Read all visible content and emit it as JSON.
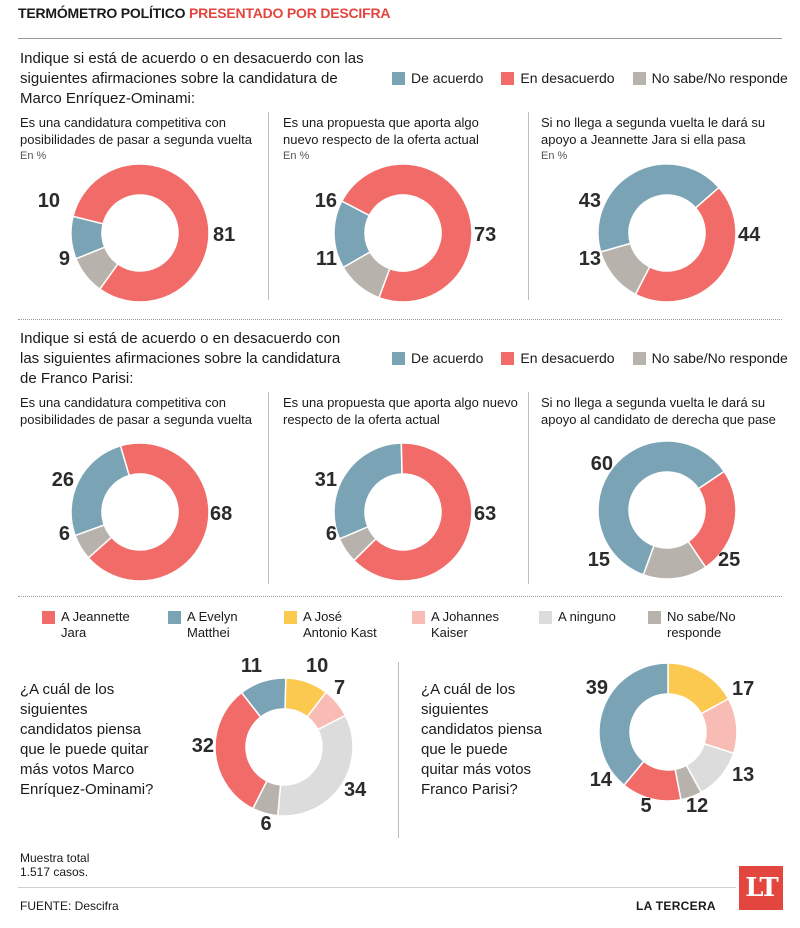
{
  "header": {
    "title": "TERMÓMETRO POLÍTICO",
    "subtitle": "PRESENTADO POR DESCIFRA"
  },
  "legend_agree": [
    {
      "label": "De acuerdo",
      "color": "#7aa4b5"
    },
    {
      "label": "En desacuerdo",
      "color": "#f16c68"
    },
    {
      "label": "No sabe/No responde",
      "color": "#b8b2ad"
    }
  ],
  "section1": {
    "question": [
      "Indique si está de acuerdo o en desacuerdo con las",
      "siguientes afirmaciones sobre la candidatura de",
      "Marco Enríquez-Ominami:"
    ],
    "charts": [
      {
        "lines": [
          "Es una candidatura competitiva con",
          "posibilidades de pasar a segunda vuelta"
        ],
        "unit": "En %"
      },
      {
        "lines": [
          "Es una propuesta que aporta algo",
          "nuevo respecto de la oferta actual"
        ],
        "unit": "En %"
      },
      {
        "lines": [
          "Si no llega a segunda vuelta le dará su",
          "apoyo a Jeannette Jara si ella pasa"
        ],
        "unit": "En %"
      }
    ]
  },
  "section2": {
    "question": [
      "Indique si está de acuerdo o en desacuerdo con",
      "las siguientes afirmaciones sobre la candidatura",
      "de Franco Parisi:"
    ],
    "charts": [
      {
        "lines": [
          "Es una candidatura competitiva con",
          "posibilidades de pasar a segunda vuelta"
        ]
      },
      {
        "lines": [
          "Es una propuesta que aporta algo nuevo",
          "respecto de la oferta actual"
        ]
      },
      {
        "lines": [
          "Si no llega a segunda vuelta le dará su",
          "apoyo al candidato de derecha que pase"
        ]
      }
    ]
  },
  "legend_candidates": [
    {
      "lines": [
        "A Jeannette",
        "Jara"
      ],
      "color": "#f16c68"
    },
    {
      "lines": [
        "A Evelyn",
        "Matthei"
      ],
      "color": "#7aa4b5"
    },
    {
      "lines": [
        "A José",
        "Antonio Kast"
      ],
      "color": "#fbc850"
    },
    {
      "lines": [
        "A Johannes",
        "Kaiser"
      ],
      "color": "#f8bcb5"
    },
    {
      "lines": [
        "A ninguno",
        ""
      ],
      "color": "#dcdcdc"
    },
    {
      "lines": [
        "No sabe/No",
        "responde"
      ],
      "color": "#b8b2ad"
    }
  ],
  "section3": {
    "q_meo": [
      "¿A cuál de los",
      "siguientes",
      "candidatos piensa",
      "que le puede quitar",
      "más votos Marco",
      "Enríquez-Ominami?"
    ],
    "q_parisi": [
      "¿A cuál de los",
      "siguientes",
      "candidatos piensa",
      "que le puede",
      "quitar más votos",
      "Franco Parisi?"
    ]
  },
  "footer": {
    "sample_1": "Muestra total",
    "sample_2": "1.517 casos.",
    "source": "FUENTE: Descifra",
    "brand": "LA TERCERA",
    "logo": "LT"
  },
  "chart_data": [
    {
      "type": "pie",
      "title": "Es una candidatura competitiva con posibilidades de pasar a segunda vuelta (Marco Enríquez-Ominami)",
      "unit": "En %",
      "categories": [
        "De acuerdo",
        "En desacuerdo",
        "No sabe/No responde"
      ],
      "values": [
        10,
        81,
        9
      ]
    },
    {
      "type": "pie",
      "title": "Es una propuesta que aporta algo nuevo respecto de la oferta actual (Marco Enríquez-Ominami)",
      "unit": "En %",
      "categories": [
        "De acuerdo",
        "En desacuerdo",
        "No sabe/No responde"
      ],
      "values": [
        16,
        73,
        11
      ]
    },
    {
      "type": "pie",
      "title": "Si no llega a segunda vuelta le dará su apoyo a Jeannette Jara si ella pasa (Marco Enríquez-Ominami)",
      "unit": "En %",
      "categories": [
        "De acuerdo",
        "En desacuerdo",
        "No sabe/No responde"
      ],
      "values": [
        43,
        44,
        13
      ]
    },
    {
      "type": "pie",
      "title": "Es una candidatura competitiva con posibilidades de pasar a segunda vuelta (Franco Parisi)",
      "categories": [
        "De acuerdo",
        "En desacuerdo",
        "No sabe/No responde"
      ],
      "values": [
        26,
        68,
        6
      ]
    },
    {
      "type": "pie",
      "title": "Es una propuesta que aporta algo nuevo respecto de la oferta actual (Franco Parisi)",
      "categories": [
        "De acuerdo",
        "En desacuerdo",
        "No sabe/No responde"
      ],
      "values": [
        31,
        63,
        6
      ]
    },
    {
      "type": "pie",
      "title": "Si no llega a segunda vuelta le dará su apoyo al candidato de derecha que pase (Franco Parisi)",
      "categories": [
        "De acuerdo",
        "En desacuerdo",
        "No sabe/No responde"
      ],
      "values": [
        60,
        25,
        15
      ]
    },
    {
      "type": "pie",
      "title": "¿A cuál de los siguientes candidatos piensa que le puede quitar más votos Marco Enríquez-Ominami?",
      "categories": [
        "A Evelyn Matthei",
        "A José Antonio Kast",
        "A Johannes Kaiser",
        "A ninguno",
        "No sabe/No responde",
        "A Jeannette Jara"
      ],
      "values": [
        11,
        10,
        7,
        34,
        6,
        32
      ]
    },
    {
      "type": "pie",
      "title": "¿A cuál de los siguientes candidatos piensa que le puede quitar más votos Franco Parisi?",
      "categories": [
        "A José Antonio Kast",
        "A Johannes Kaiser",
        "A ninguno",
        "No sabe/No responde",
        "A Jeannette Jara",
        "A Evelyn Matthei"
      ],
      "values": [
        17,
        13,
        12,
        5,
        14,
        39
      ]
    }
  ]
}
